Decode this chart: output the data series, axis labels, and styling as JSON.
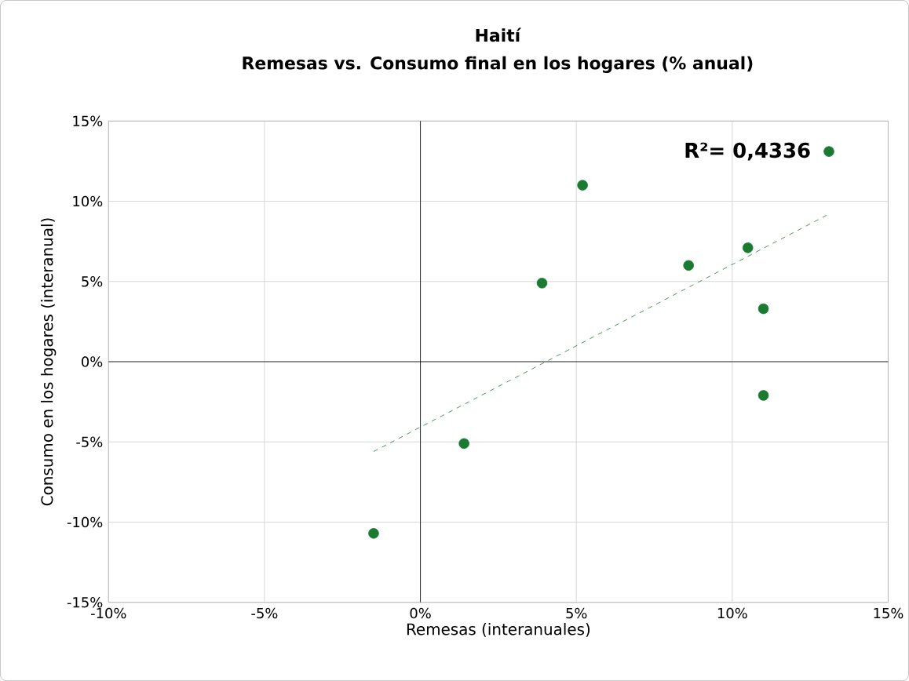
{
  "chart_data": {
    "type": "scatter",
    "title": "Haití",
    "subtitle": "Remesas vs. Consumo final en los hogares (% anual)",
    "xlabel": "Remesas (interanuales)",
    "ylabel": "Consumo en los hogares (interanual)",
    "series": [
      {
        "color": "#1a7a32",
        "x": [
          -1.5,
          1.4,
          3.9,
          5.2,
          8.6,
          10.5,
          11.0,
          11.0,
          13.1
        ],
        "values": [
          -10.7,
          -5.1,
          4.9,
          11.0,
          6.0,
          7.1,
          3.3,
          -2.1,
          13.1
        ]
      },
      {
        "type": "line",
        "color": "#1a7a32",
        "line_style": "dashed",
        "marker": "none",
        "x": [
          -1.5,
          13.1
        ],
        "values": [
          -5.6,
          9.2
        ]
      }
    ],
    "annotations": [
      {
        "text": "**R²= 0,4336**",
        "x": 13.1,
        "y": 13.1
      }
    ],
    "marker": "circle",
    "grid": true,
    "xlim": [
      -10,
      15
    ],
    "ylim": [
      -15,
      15
    ],
    "xticks": [
      {
        "value": -10,
        "label": "-10%"
      },
      {
        "value": -5,
        "label": "-5%"
      },
      {
        "value": 0,
        "label": "0%"
      },
      {
        "value": 5,
        "label": "5%"
      },
      {
        "value": 10,
        "label": "10%"
      },
      {
        "value": 15,
        "label": "15%"
      }
    ],
    "yticks": [
      {
        "value": -15,
        "label": "-15%"
      },
      {
        "value": -10,
        "label": "-10%"
      },
      {
        "value": -5,
        "label": "-5%"
      },
      {
        "value": 0,
        "label": "0%"
      },
      {
        "value": 5,
        "label": "5%"
      },
      {
        "value": 10,
        "label": "10%"
      },
      {
        "value": 15,
        "label": "15%"
      }
    ]
  }
}
